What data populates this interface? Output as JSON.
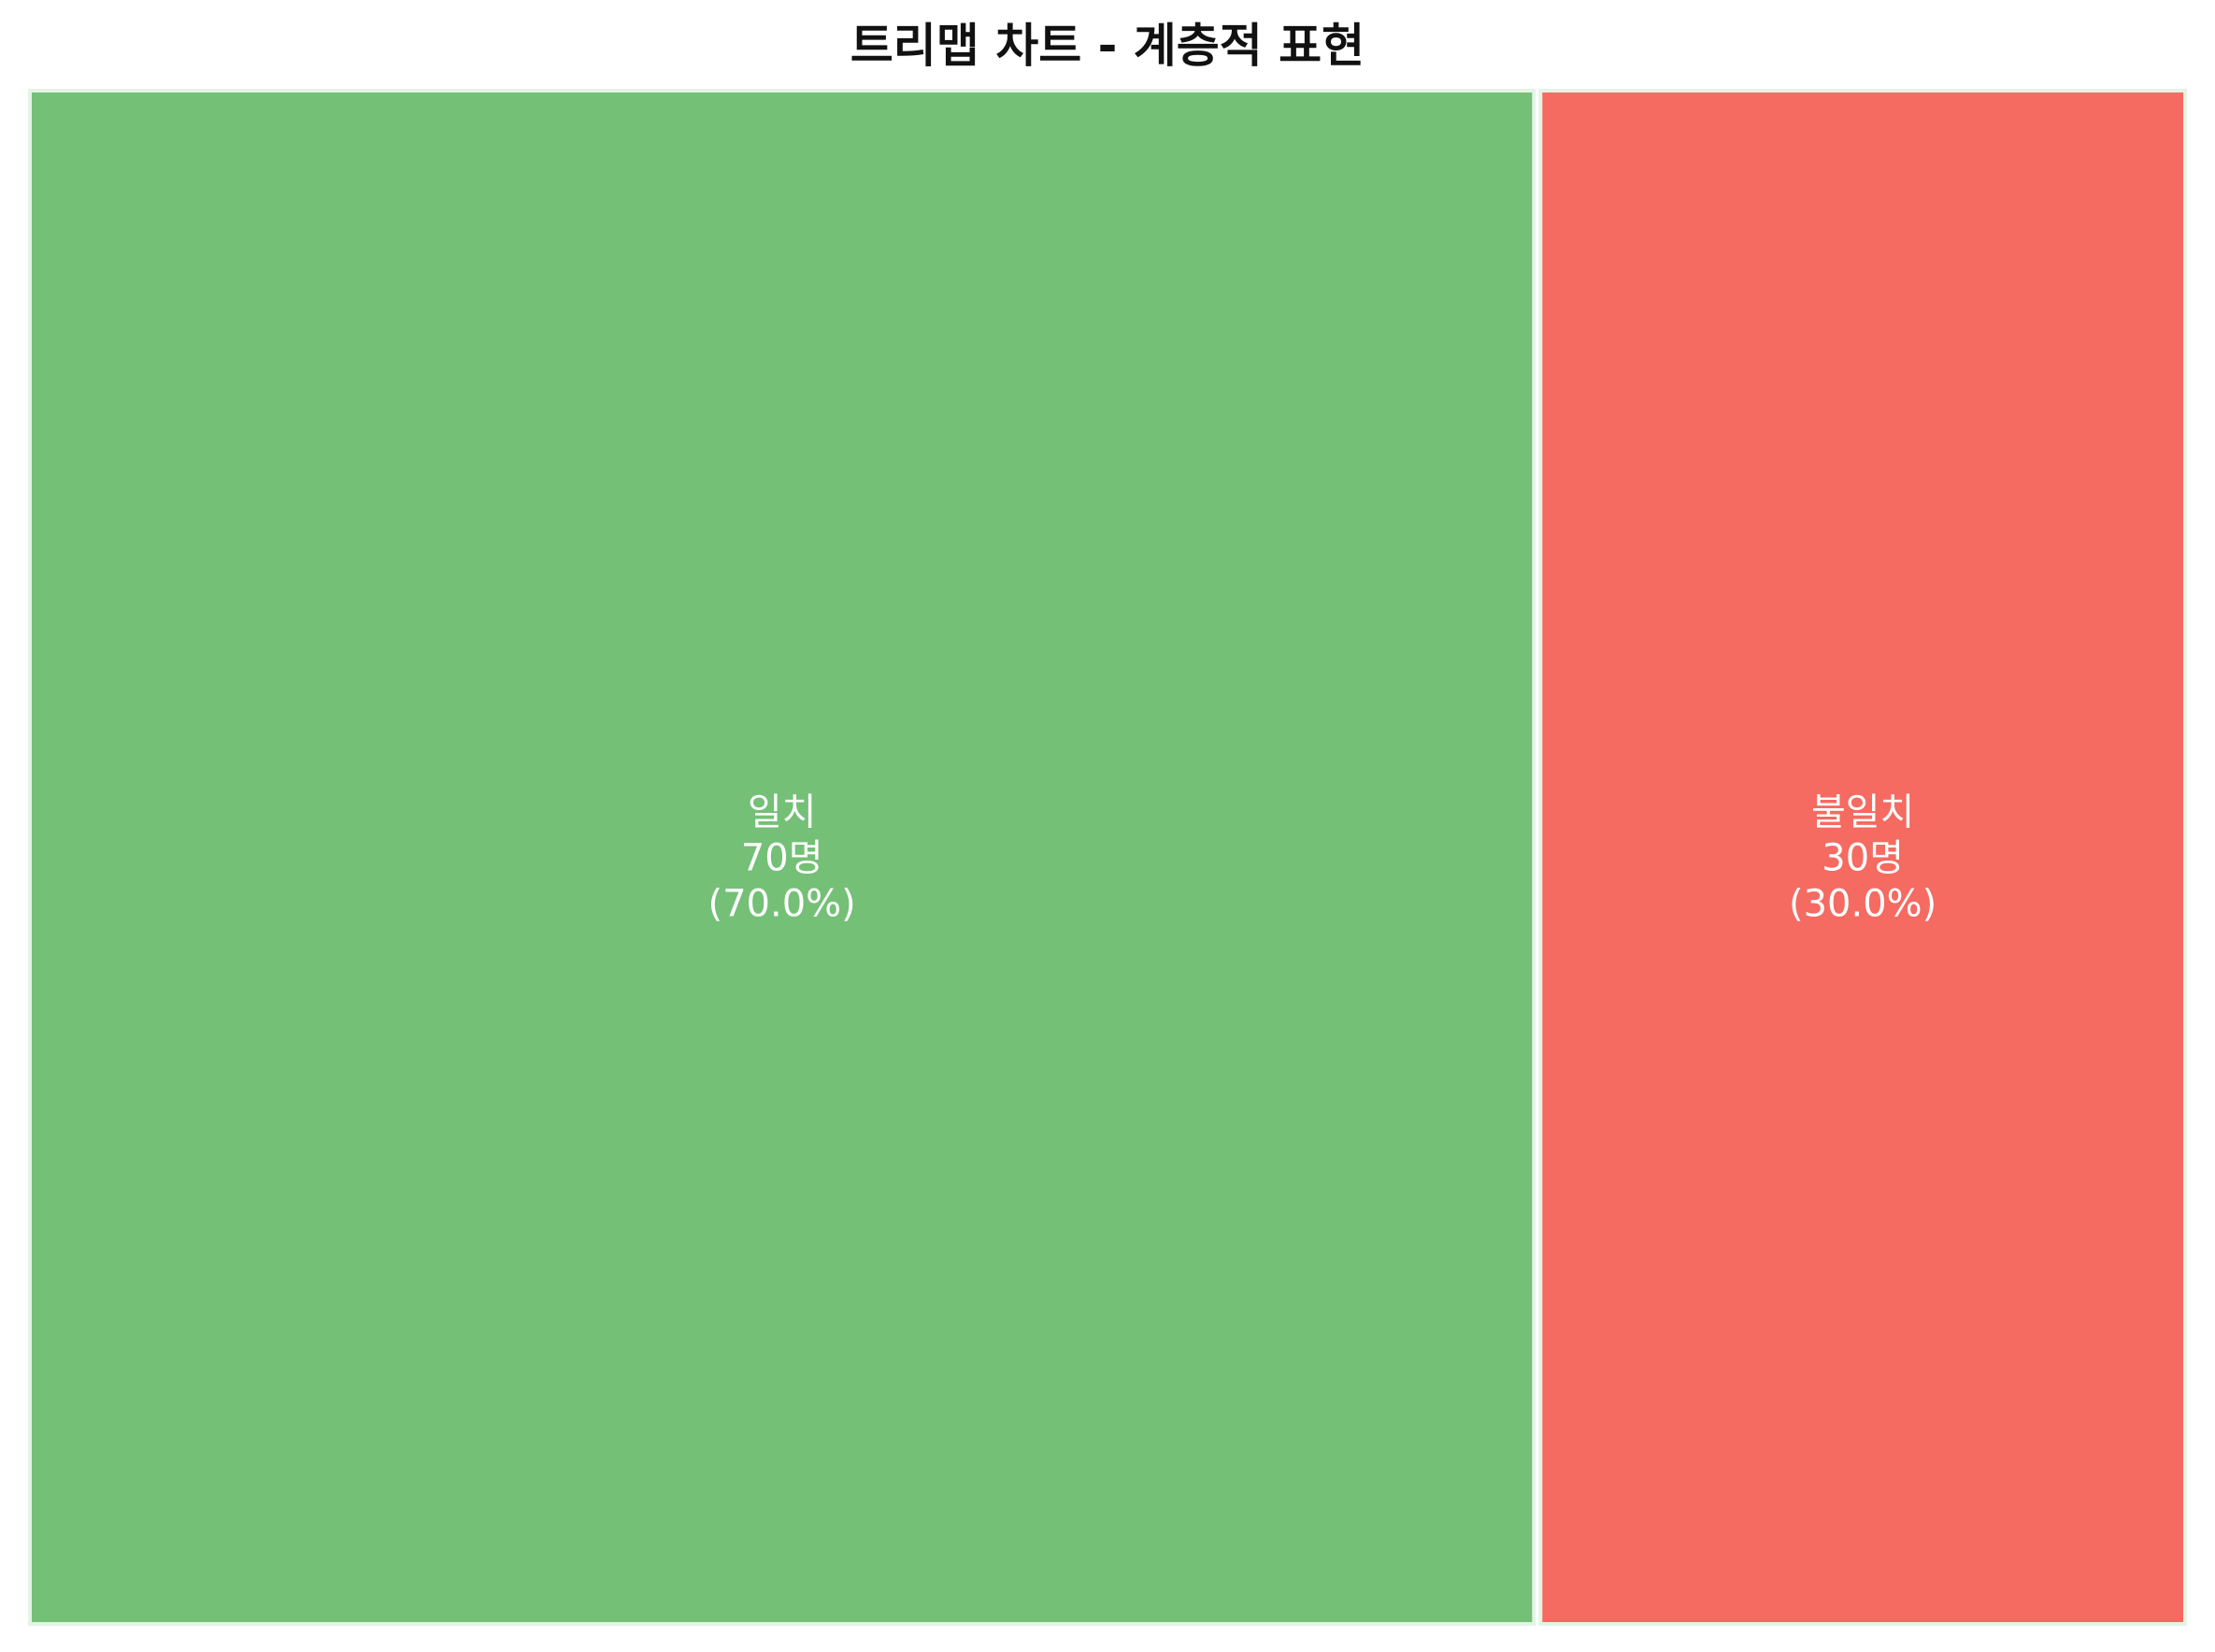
{
  "chart_data": {
    "type": "treemap",
    "title": "트리맵 차트 - 계층적 표현",
    "unit": "명",
    "items": [
      {
        "name": "일치",
        "value": 70,
        "count_label": "70명",
        "percent_label": "(70.0%)",
        "percent": 70.0,
        "color": "#73c076"
      },
      {
        "name": "불일치",
        "value": 30,
        "count_label": "30명",
        "percent_label": "(30.0%)",
        "percent": 30.0,
        "color": "#f56a61"
      }
    ],
    "border_color": "#e5f3e6",
    "title_color": "#111111",
    "label_color": "#ffffff"
  }
}
